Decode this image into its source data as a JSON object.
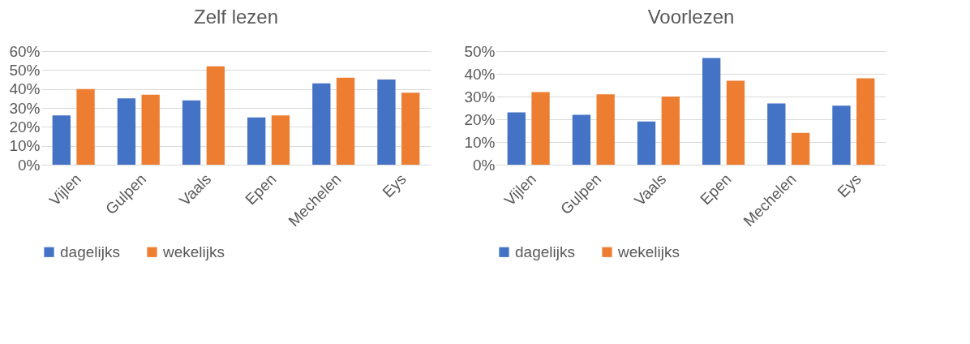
{
  "chart_data": [
    {
      "type": "bar",
      "title": "Zelf lezen",
      "categories": [
        "Vijlen",
        "Gulpen",
        "Vaals",
        "Epen",
        "Mechelen",
        "Eys"
      ],
      "series": [
        {
          "name": "dagelijks",
          "color": "#4472c4",
          "values": [
            26,
            35,
            34,
            25,
            43,
            45
          ]
        },
        {
          "name": "wekelijks",
          "color": "#ed7d31",
          "values": [
            40,
            37,
            52,
            26,
            46,
            38
          ]
        }
      ],
      "ylim": [
        0,
        60
      ],
      "yticks": [
        {
          "value": 0,
          "label": "0%"
        },
        {
          "value": 10,
          "label": "10%"
        },
        {
          "value": 20,
          "label": "20%"
        },
        {
          "value": 30,
          "label": "30%"
        },
        {
          "value": 40,
          "label": "40%"
        },
        {
          "value": 50,
          "label": "50%"
        },
        {
          "value": 60,
          "label": "60%"
        }
      ],
      "grid": "y",
      "legend": "bottom"
    },
    {
      "type": "bar",
      "title": "Voorlezen",
      "categories": [
        "Vijlen",
        "Gulpen",
        "Vaals",
        "Epen",
        "Mechelen",
        "Eys"
      ],
      "series": [
        {
          "name": "dagelijks",
          "color": "#4472c4",
          "values": [
            23,
            22,
            19,
            47,
            27,
            26
          ]
        },
        {
          "name": "wekelijks",
          "color": "#ed7d31",
          "values": [
            32,
            31,
            30,
            37,
            14,
            38
          ]
        }
      ],
      "ylim": [
        0,
        50
      ],
      "yticks": [
        {
          "value": 0,
          "label": "0%"
        },
        {
          "value": 10,
          "label": "10%"
        },
        {
          "value": 20,
          "label": "20%"
        },
        {
          "value": 30,
          "label": "30%"
        },
        {
          "value": 40,
          "label": "40%"
        },
        {
          "value": 50,
          "label": "50%"
        }
      ],
      "grid": "y",
      "legend": "bottom"
    }
  ]
}
